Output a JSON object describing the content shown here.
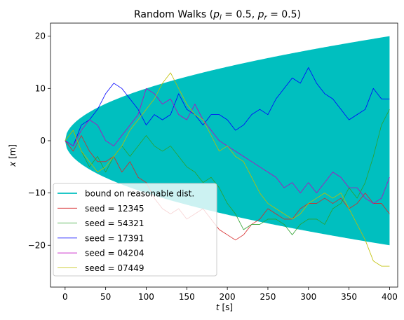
{
  "chart_data": {
    "type": "line",
    "title_parts": {
      "prefix": "Random Walks (",
      "p_l_symbol": "p",
      "p_l_sub": "l",
      "p_l_eq": " = 0.5, ",
      "p_r_symbol": "p",
      "p_r_sub": "r",
      "p_r_eq": " = 0.5",
      "suffix": ")"
    },
    "xlabel_symbol": "t",
    "xlabel_unit": " [s]",
    "ylabel_symbol": "x",
    "ylabel_unit": " [m]",
    "xlim": [
      -18,
      410
    ],
    "ylim": [
      -28,
      22.5
    ],
    "xticks": [
      0,
      50,
      100,
      150,
      200,
      250,
      300,
      350,
      400
    ],
    "yticks": [
      -20,
      -10,
      0,
      10,
      20
    ],
    "ytick_labels": [
      "−20",
      "−10",
      "0",
      "10",
      "20"
    ],
    "legend_position": "lower-left",
    "band": {
      "name": "bound on reasonable dist.",
      "color": "#00bfbf",
      "x_max": 400,
      "formula": "±sqrt(t)"
    },
    "series": [
      {
        "name": "seed = 12345",
        "color": "#d62728",
        "points": [
          [
            0,
            0
          ],
          [
            10,
            -2
          ],
          [
            20,
            1
          ],
          [
            30,
            -2
          ],
          [
            40,
            -4
          ],
          [
            50,
            -4
          ],
          [
            60,
            -3
          ],
          [
            70,
            -6
          ],
          [
            80,
            -4
          ],
          [
            90,
            -7
          ],
          [
            100,
            -8
          ],
          [
            110,
            -11
          ],
          [
            120,
            -13
          ],
          [
            130,
            -14
          ],
          [
            140,
            -13
          ],
          [
            150,
            -15
          ],
          [
            160,
            -14
          ],
          [
            170,
            -13
          ],
          [
            180,
            -15
          ],
          [
            190,
            -17
          ],
          [
            200,
            -18
          ],
          [
            210,
            -19
          ],
          [
            220,
            -18
          ],
          [
            230,
            -16
          ],
          [
            240,
            -15
          ],
          [
            250,
            -13
          ],
          [
            260,
            -14
          ],
          [
            270,
            -15
          ],
          [
            280,
            -15
          ],
          [
            290,
            -13
          ],
          [
            300,
            -12
          ],
          [
            310,
            -12
          ],
          [
            320,
            -11
          ],
          [
            330,
            -12
          ],
          [
            340,
            -11
          ],
          [
            350,
            -13
          ],
          [
            360,
            -12
          ],
          [
            370,
            -10
          ],
          [
            380,
            -12
          ],
          [
            390,
            -12
          ],
          [
            400,
            -14
          ]
        ]
      },
      {
        "name": "seed = 54321",
        "color": "#2ca02c",
        "points": [
          [
            0,
            0
          ],
          [
            10,
            2
          ],
          [
            20,
            -2
          ],
          [
            30,
            -5
          ],
          [
            40,
            -3
          ],
          [
            50,
            -6
          ],
          [
            60,
            -3
          ],
          [
            70,
            -1
          ],
          [
            80,
            -3
          ],
          [
            90,
            -1
          ],
          [
            100,
            1
          ],
          [
            110,
            -1
          ],
          [
            120,
            -2
          ],
          [
            130,
            -1
          ],
          [
            140,
            -3
          ],
          [
            150,
            -5
          ],
          [
            160,
            -6
          ],
          [
            170,
            -8
          ],
          [
            180,
            -7
          ],
          [
            190,
            -9
          ],
          [
            200,
            -12
          ],
          [
            210,
            -14
          ],
          [
            220,
            -17
          ],
          [
            230,
            -16
          ],
          [
            240,
            -16
          ],
          [
            250,
            -15
          ],
          [
            260,
            -15
          ],
          [
            270,
            -16
          ],
          [
            280,
            -18
          ],
          [
            290,
            -16
          ],
          [
            300,
            -15
          ],
          [
            310,
            -15
          ],
          [
            320,
            -16
          ],
          [
            330,
            -13
          ],
          [
            340,
            -12
          ],
          [
            350,
            -9
          ],
          [
            360,
            -11
          ],
          [
            370,
            -8
          ],
          [
            380,
            -3
          ],
          [
            390,
            3
          ],
          [
            400,
            6
          ]
        ]
      },
      {
        "name": "seed = 17391",
        "color": "#0000ff",
        "points": [
          [
            0,
            0
          ],
          [
            10,
            -1
          ],
          [
            20,
            3
          ],
          [
            30,
            4
          ],
          [
            40,
            6
          ],
          [
            50,
            9
          ],
          [
            60,
            11
          ],
          [
            70,
            10
          ],
          [
            80,
            8
          ],
          [
            90,
            6
          ],
          [
            100,
            3
          ],
          [
            110,
            5
          ],
          [
            120,
            4
          ],
          [
            130,
            5
          ],
          [
            140,
            9
          ],
          [
            150,
            6
          ],
          [
            160,
            5
          ],
          [
            170,
            3
          ],
          [
            180,
            5
          ],
          [
            190,
            5
          ],
          [
            200,
            4
          ],
          [
            210,
            2
          ],
          [
            220,
            3
          ],
          [
            230,
            5
          ],
          [
            240,
            6
          ],
          [
            250,
            5
          ],
          [
            260,
            8
          ],
          [
            270,
            10
          ],
          [
            280,
            12
          ],
          [
            290,
            11
          ],
          [
            300,
            14
          ],
          [
            310,
            11
          ],
          [
            320,
            9
          ],
          [
            330,
            8
          ],
          [
            340,
            6
          ],
          [
            350,
            4
          ],
          [
            360,
            5
          ],
          [
            370,
            6
          ],
          [
            380,
            10
          ],
          [
            390,
            8
          ],
          [
            400,
            8
          ]
        ]
      },
      {
        "name": "seed = 04204",
        "color": "#bf00bf",
        "points": [
          [
            0,
            0
          ],
          [
            10,
            -1
          ],
          [
            20,
            2
          ],
          [
            30,
            4
          ],
          [
            40,
            3
          ],
          [
            50,
            0
          ],
          [
            60,
            -1
          ],
          [
            70,
            1
          ],
          [
            80,
            3
          ],
          [
            90,
            5
          ],
          [
            100,
            10
          ],
          [
            110,
            9
          ],
          [
            120,
            7
          ],
          [
            130,
            8
          ],
          [
            140,
            5
          ],
          [
            150,
            4
          ],
          [
            160,
            7
          ],
          [
            170,
            4
          ],
          [
            180,
            2
          ],
          [
            190,
            0
          ],
          [
            200,
            -1
          ],
          [
            210,
            -2
          ],
          [
            220,
            -3
          ],
          [
            230,
            -4
          ],
          [
            240,
            -5
          ],
          [
            250,
            -6
          ],
          [
            260,
            -7
          ],
          [
            270,
            -9
          ],
          [
            280,
            -8
          ],
          [
            290,
            -10
          ],
          [
            300,
            -8
          ],
          [
            310,
            -10
          ],
          [
            320,
            -8
          ],
          [
            330,
            -6
          ],
          [
            340,
            -7
          ],
          [
            350,
            -9
          ],
          [
            360,
            -9
          ],
          [
            370,
            -11
          ],
          [
            380,
            -12
          ],
          [
            390,
            -11
          ],
          [
            400,
            -7
          ]
        ]
      },
      {
        "name": "seed = 07449",
        "color": "#bfbf00",
        "points": [
          [
            0,
            0
          ],
          [
            10,
            2
          ],
          [
            20,
            -2
          ],
          [
            30,
            -4
          ],
          [
            40,
            -6
          ],
          [
            50,
            -5
          ],
          [
            60,
            -3
          ],
          [
            70,
            -1
          ],
          [
            80,
            2
          ],
          [
            90,
            4
          ],
          [
            100,
            6
          ],
          [
            110,
            8
          ],
          [
            120,
            11
          ],
          [
            130,
            13
          ],
          [
            140,
            10
          ],
          [
            150,
            7
          ],
          [
            160,
            5
          ],
          [
            170,
            4
          ],
          [
            180,
            1
          ],
          [
            190,
            -2
          ],
          [
            200,
            -1
          ],
          [
            210,
            -3
          ],
          [
            220,
            -4
          ],
          [
            230,
            -7
          ],
          [
            240,
            -10
          ],
          [
            250,
            -12
          ],
          [
            260,
            -13
          ],
          [
            270,
            -14
          ],
          [
            280,
            -15
          ],
          [
            290,
            -14
          ],
          [
            300,
            -12
          ],
          [
            310,
            -11
          ],
          [
            320,
            -10
          ],
          [
            330,
            -11
          ],
          [
            340,
            -10
          ],
          [
            350,
            -13
          ],
          [
            360,
            -16
          ],
          [
            370,
            -19
          ],
          [
            380,
            -23
          ],
          [
            390,
            -24
          ],
          [
            400,
            -24
          ]
        ]
      }
    ]
  }
}
